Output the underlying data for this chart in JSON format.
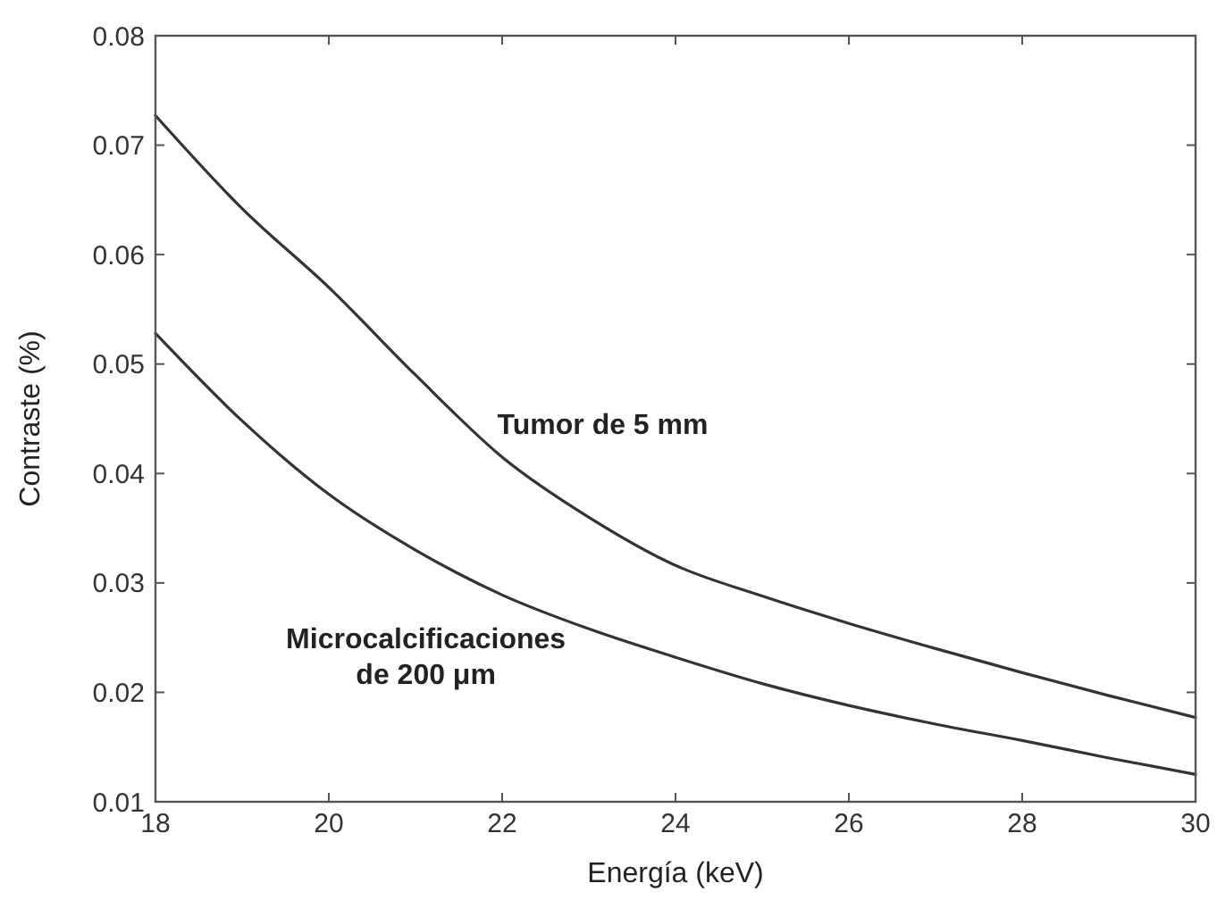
{
  "chart_data": {
    "type": "line",
    "xlabel": "Energía (keV)",
    "ylabel": "Contraste (%)",
    "x": [
      18,
      19,
      20,
      21,
      22,
      23,
      24,
      25,
      26,
      27,
      28,
      29,
      30
    ],
    "series": [
      {
        "color": "#333333",
        "values": [
          0.0727,
          0.0642,
          0.057,
          0.049,
          0.0415,
          0.036,
          0.0316,
          0.0288,
          0.0263,
          0.024,
          0.0218,
          0.0197,
          0.0177
        ]
      },
      {
        "color": "#333333",
        "values": [
          0.0528,
          0.0448,
          0.0381,
          0.033,
          0.0289,
          0.0258,
          0.0232,
          0.0208,
          0.0188,
          0.0171,
          0.0156,
          0.014,
          0.0125
        ]
      }
    ],
    "xlim": [
      18,
      30
    ],
    "ylim": [
      0.01,
      0.08
    ],
    "xticks": [
      18,
      20,
      22,
      24,
      26,
      28,
      30
    ],
    "yticks": [
      0.01,
      0.02,
      0.03,
      0.04,
      0.05,
      0.06,
      0.07,
      0.08
    ],
    "grid": false,
    "marker": "none",
    "line_style": "solid",
    "annotations": [
      "Tumor de 5 mm",
      "Microcalcificaciones\nde 200 μm"
    ]
  }
}
